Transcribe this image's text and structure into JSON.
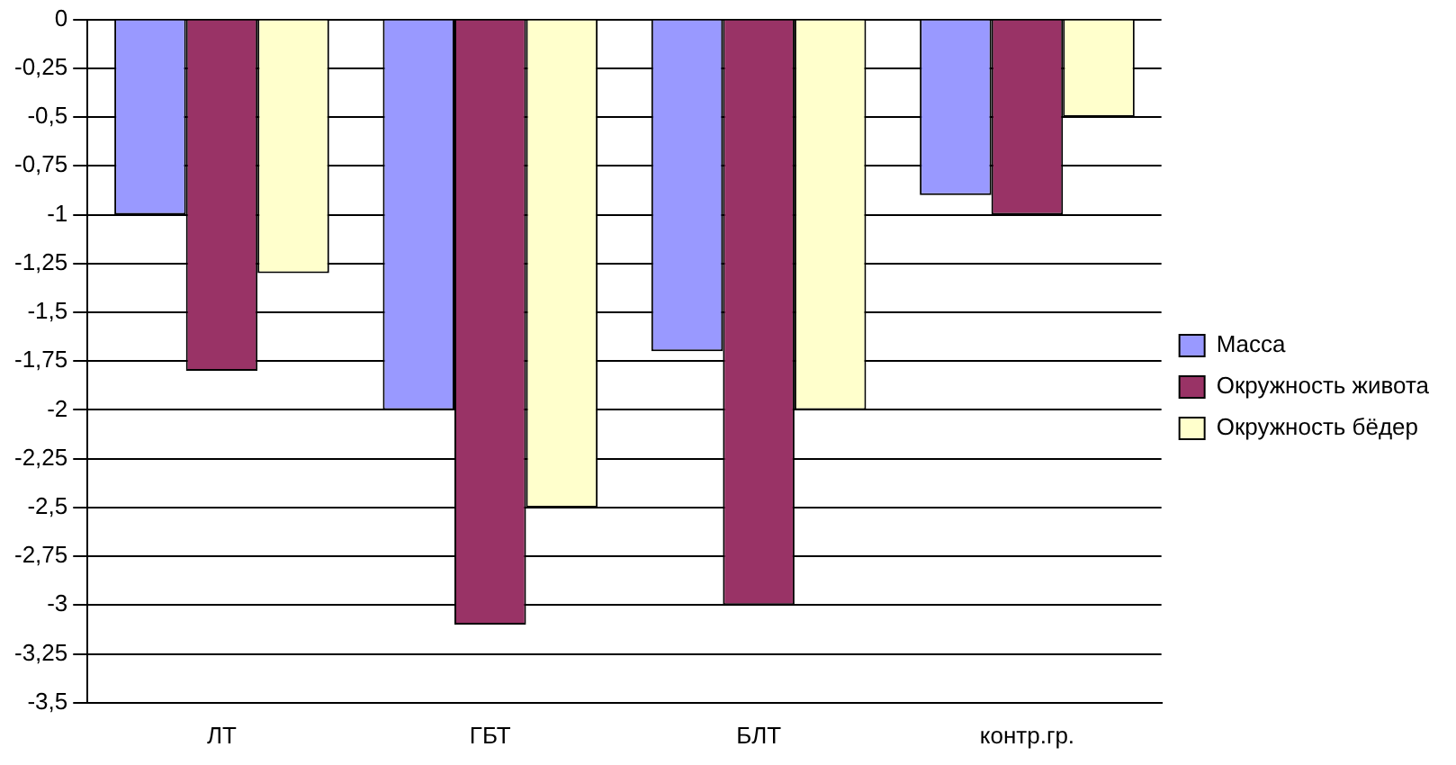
{
  "chart_data": {
    "type": "bar",
    "categories": [
      "ЛТ",
      "ГБТ",
      "БЛТ",
      "контр.гр."
    ],
    "series": [
      {
        "name": "Масса",
        "color": "#9999ff",
        "values": [
          -1,
          -2,
          -1.7,
          -0.9
        ]
      },
      {
        "name": "Окружность живота",
        "color": "#993366",
        "values": [
          -1.8,
          -3.1,
          -3,
          -1
        ]
      },
      {
        "name": "Окружность бёдер",
        "color": "#ffffcc",
        "values": [
          -1.3,
          -2.5,
          -2,
          -0.5
        ]
      }
    ],
    "ylim": [
      -3.5,
      0
    ],
    "yticks": [
      0,
      {
        "value": -0.25,
        "label": "-0,25"
      },
      {
        "value": -0.5,
        "label": "-0,5"
      },
      {
        "value": -0.75,
        "label": "-0,75"
      },
      -1,
      {
        "value": -1.25,
        "label": "-1,25"
      },
      {
        "value": -1.5,
        "label": "-1,5"
      },
      {
        "value": -1.75,
        "label": "-1,75"
      },
      -2,
      {
        "value": -2.25,
        "label": "-2,25"
      },
      {
        "value": -2.5,
        "label": "-2,5"
      },
      {
        "value": -2.75,
        "label": "-2,75"
      },
      -3,
      {
        "value": -3.25,
        "label": "-3,25"
      },
      {
        "value": -3.5,
        "label": "-3,5"
      }
    ],
    "grid": "y",
    "legend": "right"
  }
}
